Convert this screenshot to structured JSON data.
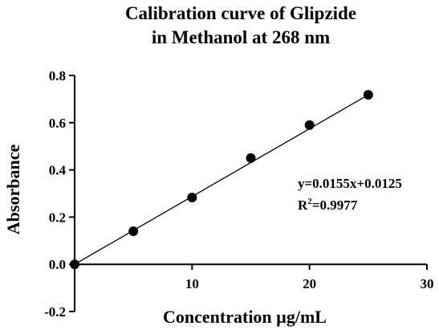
{
  "chart_data": {
    "type": "scatter",
    "title_lines": [
      "Calibration curve of Glipzide",
      "in Methanol at 268 nm"
    ],
    "xlabel": "Concentration µg/mL",
    "ylabel": "Absorbance",
    "xlim": [
      0,
      30
    ],
    "ylim": [
      -0.2,
      0.8
    ],
    "x_ticks": [
      10,
      20,
      30
    ],
    "x_tick_labels": [
      "10",
      "20",
      "30"
    ],
    "y_ticks": [
      -0.2,
      0.0,
      0.2,
      0.4,
      0.6,
      0.8
    ],
    "y_tick_labels": [
      "-0.2",
      "0.0",
      "0.2",
      "0.4",
      "0.6",
      "0.8"
    ],
    "grid": false,
    "legend": "none",
    "series": [
      {
        "x": [
          0,
          5,
          10,
          15,
          20,
          25
        ],
        "y": [
          0.0,
          0.14,
          0.283,
          0.45,
          0.59,
          0.718
        ],
        "marker_color": "#000000"
      }
    ],
    "fit_line": {
      "slope": 0.0155,
      "intercept": 0.0125,
      "x_range": [
        0,
        25
      ],
      "color": "#000000"
    },
    "annotations": {
      "equation": "y=0.0155x+0.0125",
      "r2_prefix": "R",
      "r2_sup": "2",
      "r2_value": "=0.9977"
    }
  }
}
